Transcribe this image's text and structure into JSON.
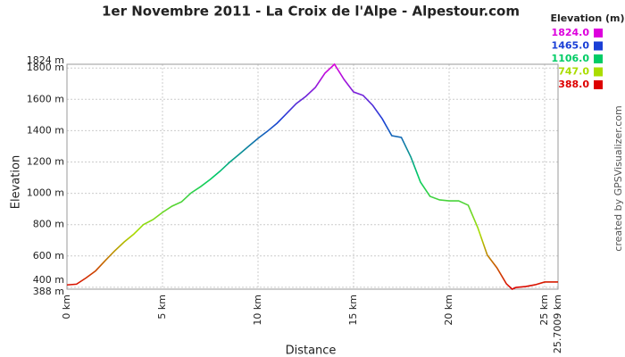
{
  "chart_data": {
    "type": "line",
    "title": "1er Novembre 2011 - La Croix de l'Alpe - Alpestour.com",
    "x_label": "Distance",
    "y_label": "Elevation",
    "credit": "created by GPSVisualizer.com",
    "x": [
      0,
      0.5,
      1,
      1.5,
      2,
      2.5,
      3,
      3.5,
      4,
      4.5,
      5,
      5.5,
      6,
      6.5,
      7,
      7.5,
      8,
      8.5,
      9,
      9.5,
      10,
      10.5,
      11,
      11.5,
      12,
      12.5,
      13,
      13.5,
      14,
      14.5,
      15,
      15.5,
      16,
      16.5,
      17,
      17.5,
      18,
      18.5,
      19,
      19.5,
      20,
      20.5,
      21,
      21.5,
      22,
      22.5,
      23,
      23.3,
      23.5,
      24,
      24.5,
      25,
      25.7009
    ],
    "values": [
      415,
      420,
      460,
      505,
      570,
      633,
      690,
      740,
      800,
      832,
      878,
      918,
      946,
      1003,
      1043,
      1089,
      1140,
      1197,
      1248,
      1300,
      1351,
      1397,
      1448,
      1510,
      1573,
      1619,
      1676,
      1767,
      1824,
      1727,
      1647,
      1625,
      1562,
      1476,
      1368,
      1357,
      1231,
      1072,
      981,
      958,
      952,
      952,
      924,
      781,
      605,
      525,
      422,
      388,
      399,
      405,
      416,
      434,
      434
    ],
    "xlim": [
      0,
      25.7009
    ],
    "xticks": [
      {
        "value": 0,
        "label": "0 km"
      },
      {
        "value": 5,
        "label": "5 km"
      },
      {
        "value": 10,
        "label": "10 km"
      },
      {
        "value": 15,
        "label": "15 km"
      },
      {
        "value": 20,
        "label": "20 km"
      },
      {
        "value": 25,
        "label": "25 km"
      },
      {
        "value": 25.7009,
        "label": "25.7009 km"
      }
    ],
    "ylim": [
      388,
      1824
    ],
    "yticks": [
      {
        "value": 388,
        "label": "388 m"
      },
      {
        "value": 400,
        "label": "400 m"
      },
      {
        "value": 600,
        "label": "600 m"
      },
      {
        "value": 800,
        "label": "800 m"
      },
      {
        "value": 1000,
        "label": "1000 m"
      },
      {
        "value": 1200,
        "label": "1200 m"
      },
      {
        "value": 1400,
        "label": "1400 m"
      },
      {
        "value": 1600,
        "label": "1600 m"
      },
      {
        "value": 1800,
        "label": "1800 m"
      },
      {
        "value": 1824,
        "label": "1824 m"
      }
    ],
    "grid": true,
    "legend": {
      "title": "Elevation (m)",
      "values": [
        1824,
        1465,
        1106,
        747,
        388
      ],
      "value_labels": [
        "1824.0",
        "1465.0",
        "1106.0",
        "747.0",
        "388.0"
      ],
      "colors": [
        "#dd00dd",
        "#1a3fd6",
        "#00cc66",
        "#aadd00",
        "#dd0000"
      ]
    }
  }
}
